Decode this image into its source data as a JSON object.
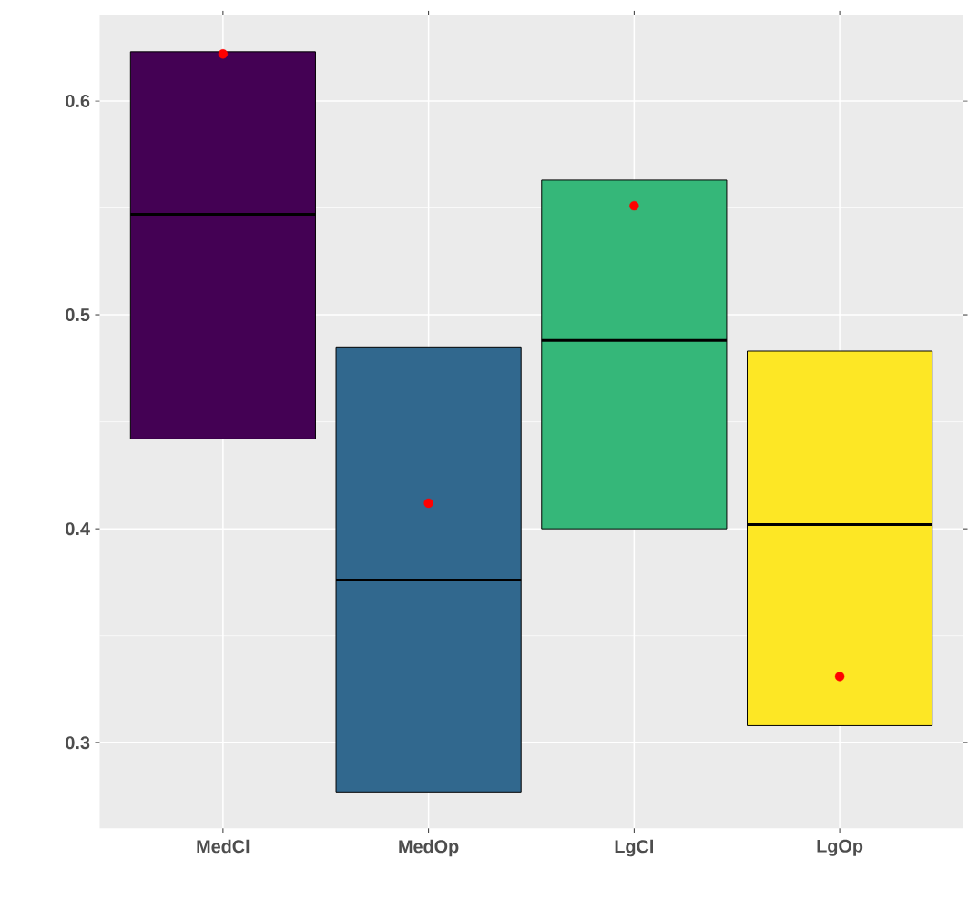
{
  "chart_data": {
    "type": "box",
    "categories": [
      "MedCl",
      "MedOp",
      "LgCl",
      "LgOp"
    ],
    "colors": [
      "#440154",
      "#31688e",
      "#35b779",
      "#fde725"
    ],
    "boxes": [
      {
        "low": 0.442,
        "q1": 0.442,
        "median": 0.547,
        "q3": 0.623,
        "high": 0.623,
        "mean": 0.622
      },
      {
        "low": 0.277,
        "q1": 0.277,
        "median": 0.376,
        "q3": 0.485,
        "high": 0.485,
        "mean": 0.412
      },
      {
        "low": 0.4,
        "q1": 0.4,
        "median": 0.488,
        "q3": 0.563,
        "high": 0.563,
        "mean": 0.551
      },
      {
        "low": 0.308,
        "q1": 0.308,
        "median": 0.402,
        "q3": 0.483,
        "high": 0.483,
        "mean": 0.331
      }
    ],
    "ylim": [
      0.26,
      0.64
    ],
    "yticks": [
      0.3,
      0.4,
      0.5,
      0.6
    ],
    "grid": true
  }
}
